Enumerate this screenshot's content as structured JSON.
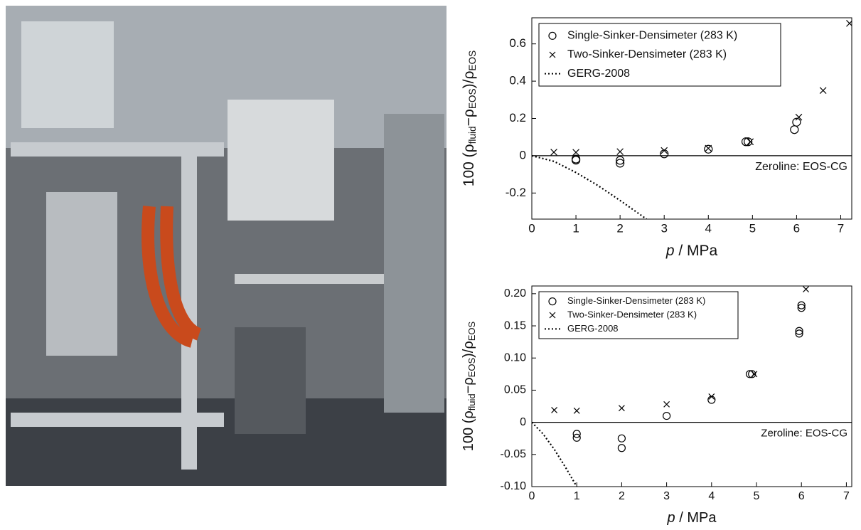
{
  "chart_data": [
    {
      "type": "scatter",
      "ylabel": [
        "100 (ρ",
        "fluid",
        "−ρ",
        "EOS",
        ")/ρ",
        "EOS"
      ],
      "xlabel": [
        "p",
        " / MPa"
      ],
      "annotation": "Zeroline: EOS-CG",
      "zeroline": 0,
      "xlim": [
        0,
        7.25
      ],
      "ylim": [
        -0.34,
        0.74
      ],
      "xticks": [
        0,
        1,
        2,
        3,
        4,
        5,
        6,
        7
      ],
      "yticks": [
        -0.2,
        0,
        0.2,
        0.4,
        0.6
      ],
      "series": [
        {
          "name": "Single-Sinker-Densimeter (283 K)",
          "marker": "circle",
          "color": "#000000",
          "x": [
            1,
            1,
            2,
            2,
            3,
            4,
            4.85,
            4.9,
            5.95,
            6
          ],
          "values": [
            -0.018,
            -0.024,
            -0.025,
            -0.04,
            0.01,
            0.035,
            0.075,
            0.075,
            0.14,
            0.18
          ]
        },
        {
          "name": "Two-Sinker-Densimeter (283 K)",
          "marker": "cross",
          "color": "#000000",
          "x": [
            0.5,
            1,
            2,
            3,
            4,
            4.95,
            6.05,
            6.6,
            7.2
          ],
          "values": [
            0.019,
            0.018,
            0.022,
            0.028,
            0.04,
            0.075,
            0.207,
            0.35,
            0.71
          ]
        },
        {
          "name": "GERG-2008",
          "marker": "dotted-line",
          "color": "#000000",
          "x": [
            0,
            0.5,
            1,
            1.5,
            2,
            2.6
          ],
          "values": [
            0,
            -0.03,
            -0.09,
            -0.16,
            -0.24,
            -0.34
          ]
        }
      ]
    },
    {
      "type": "scatter",
      "ylabel": [
        "100 (ρ",
        "fluid",
        "−ρ",
        "EOS",
        ")/ρ",
        "EOS"
      ],
      "xlabel": [
        "p",
        " / MPa"
      ],
      "annotation": "Zeroline: EOS-CG",
      "zeroline": 0,
      "xlim": [
        0,
        7.12
      ],
      "ylim": [
        -0.1,
        0.212
      ],
      "xticks": [
        0,
        1,
        2,
        3,
        4,
        5,
        6,
        7
      ],
      "yticks": [
        {
          "value": -0.1,
          "label": "-0.10"
        },
        {
          "value": -0.05,
          "label": "-0.05"
        },
        0,
        0.05,
        {
          "value": 0.1,
          "label": "0.10"
        },
        0.15,
        {
          "value": 0.2,
          "label": "0.20"
        }
      ],
      "series": [
        {
          "name": "Single-Sinker-Densimeter (283 K)",
          "marker": "circle",
          "color": "#000000",
          "x": [
            1,
            1,
            2,
            2,
            3,
            4,
            4.85,
            4.9,
            5.95,
            5.95,
            6,
            6
          ],
          "values": [
            -0.018,
            -0.024,
            -0.025,
            -0.04,
            0.01,
            0.035,
            0.075,
            0.075,
            0.138,
            0.142,
            0.178,
            0.182
          ]
        },
        {
          "name": "Two-Sinker-Densimeter (283 K)",
          "marker": "cross",
          "color": "#000000",
          "x": [
            0.5,
            1,
            2,
            3,
            4,
            4.95,
            6.1
          ],
          "values": [
            0.019,
            0.018,
            0.022,
            0.028,
            0.04,
            0.075,
            0.207
          ]
        },
        {
          "name": "GERG-2008",
          "marker": "dotted-line",
          "color": "#000000",
          "x": [
            0,
            0.25,
            0.5,
            0.75,
            1
          ],
          "values": [
            0,
            -0.018,
            -0.042,
            -0.07,
            -0.1
          ]
        }
      ]
    }
  ]
}
